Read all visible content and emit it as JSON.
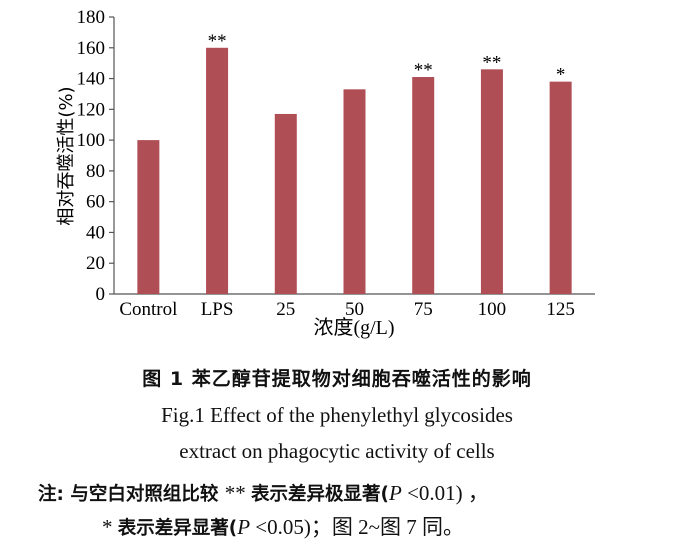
{
  "chart_data": {
    "type": "bar",
    "categories": [
      "Control",
      "LPS",
      "25",
      "50",
      "75",
      "100",
      "125"
    ],
    "values": [
      100,
      160,
      117,
      133,
      141,
      146,
      138
    ],
    "significance": [
      "",
      "**",
      "",
      "",
      "**",
      "**",
      "*"
    ],
    "ylim": [
      0,
      180
    ],
    "yticks": [
      0,
      20,
      40,
      60,
      80,
      100,
      120,
      140,
      160,
      180
    ],
    "xlabel": "浓度(g/L)",
    "ylabel": "相对吞噬活性(%)",
    "bar_color": "#b04e55",
    "grid": false
  },
  "caption": {
    "zh": "图 1    苯乙醇苷提取物对细胞吞噬活性的影响",
    "en_line1": "Fig.1    Effect of the phenylethyl glycosides",
    "en_line2": "extract on phagocytic activity of cells"
  },
  "note": {
    "line1_a": "注: 与空白对照组比较 ",
    "line1_b": "** ",
    "line1_c": "表示差异极显著(",
    "line1_p": "P",
    "line1_d": " <0.01) ，",
    "line2_a": "* ",
    "line2_b": " 表示差异显著(",
    "line2_p": "P",
    "line2_c": " <0.05)；图 2~图 7 同。"
  }
}
